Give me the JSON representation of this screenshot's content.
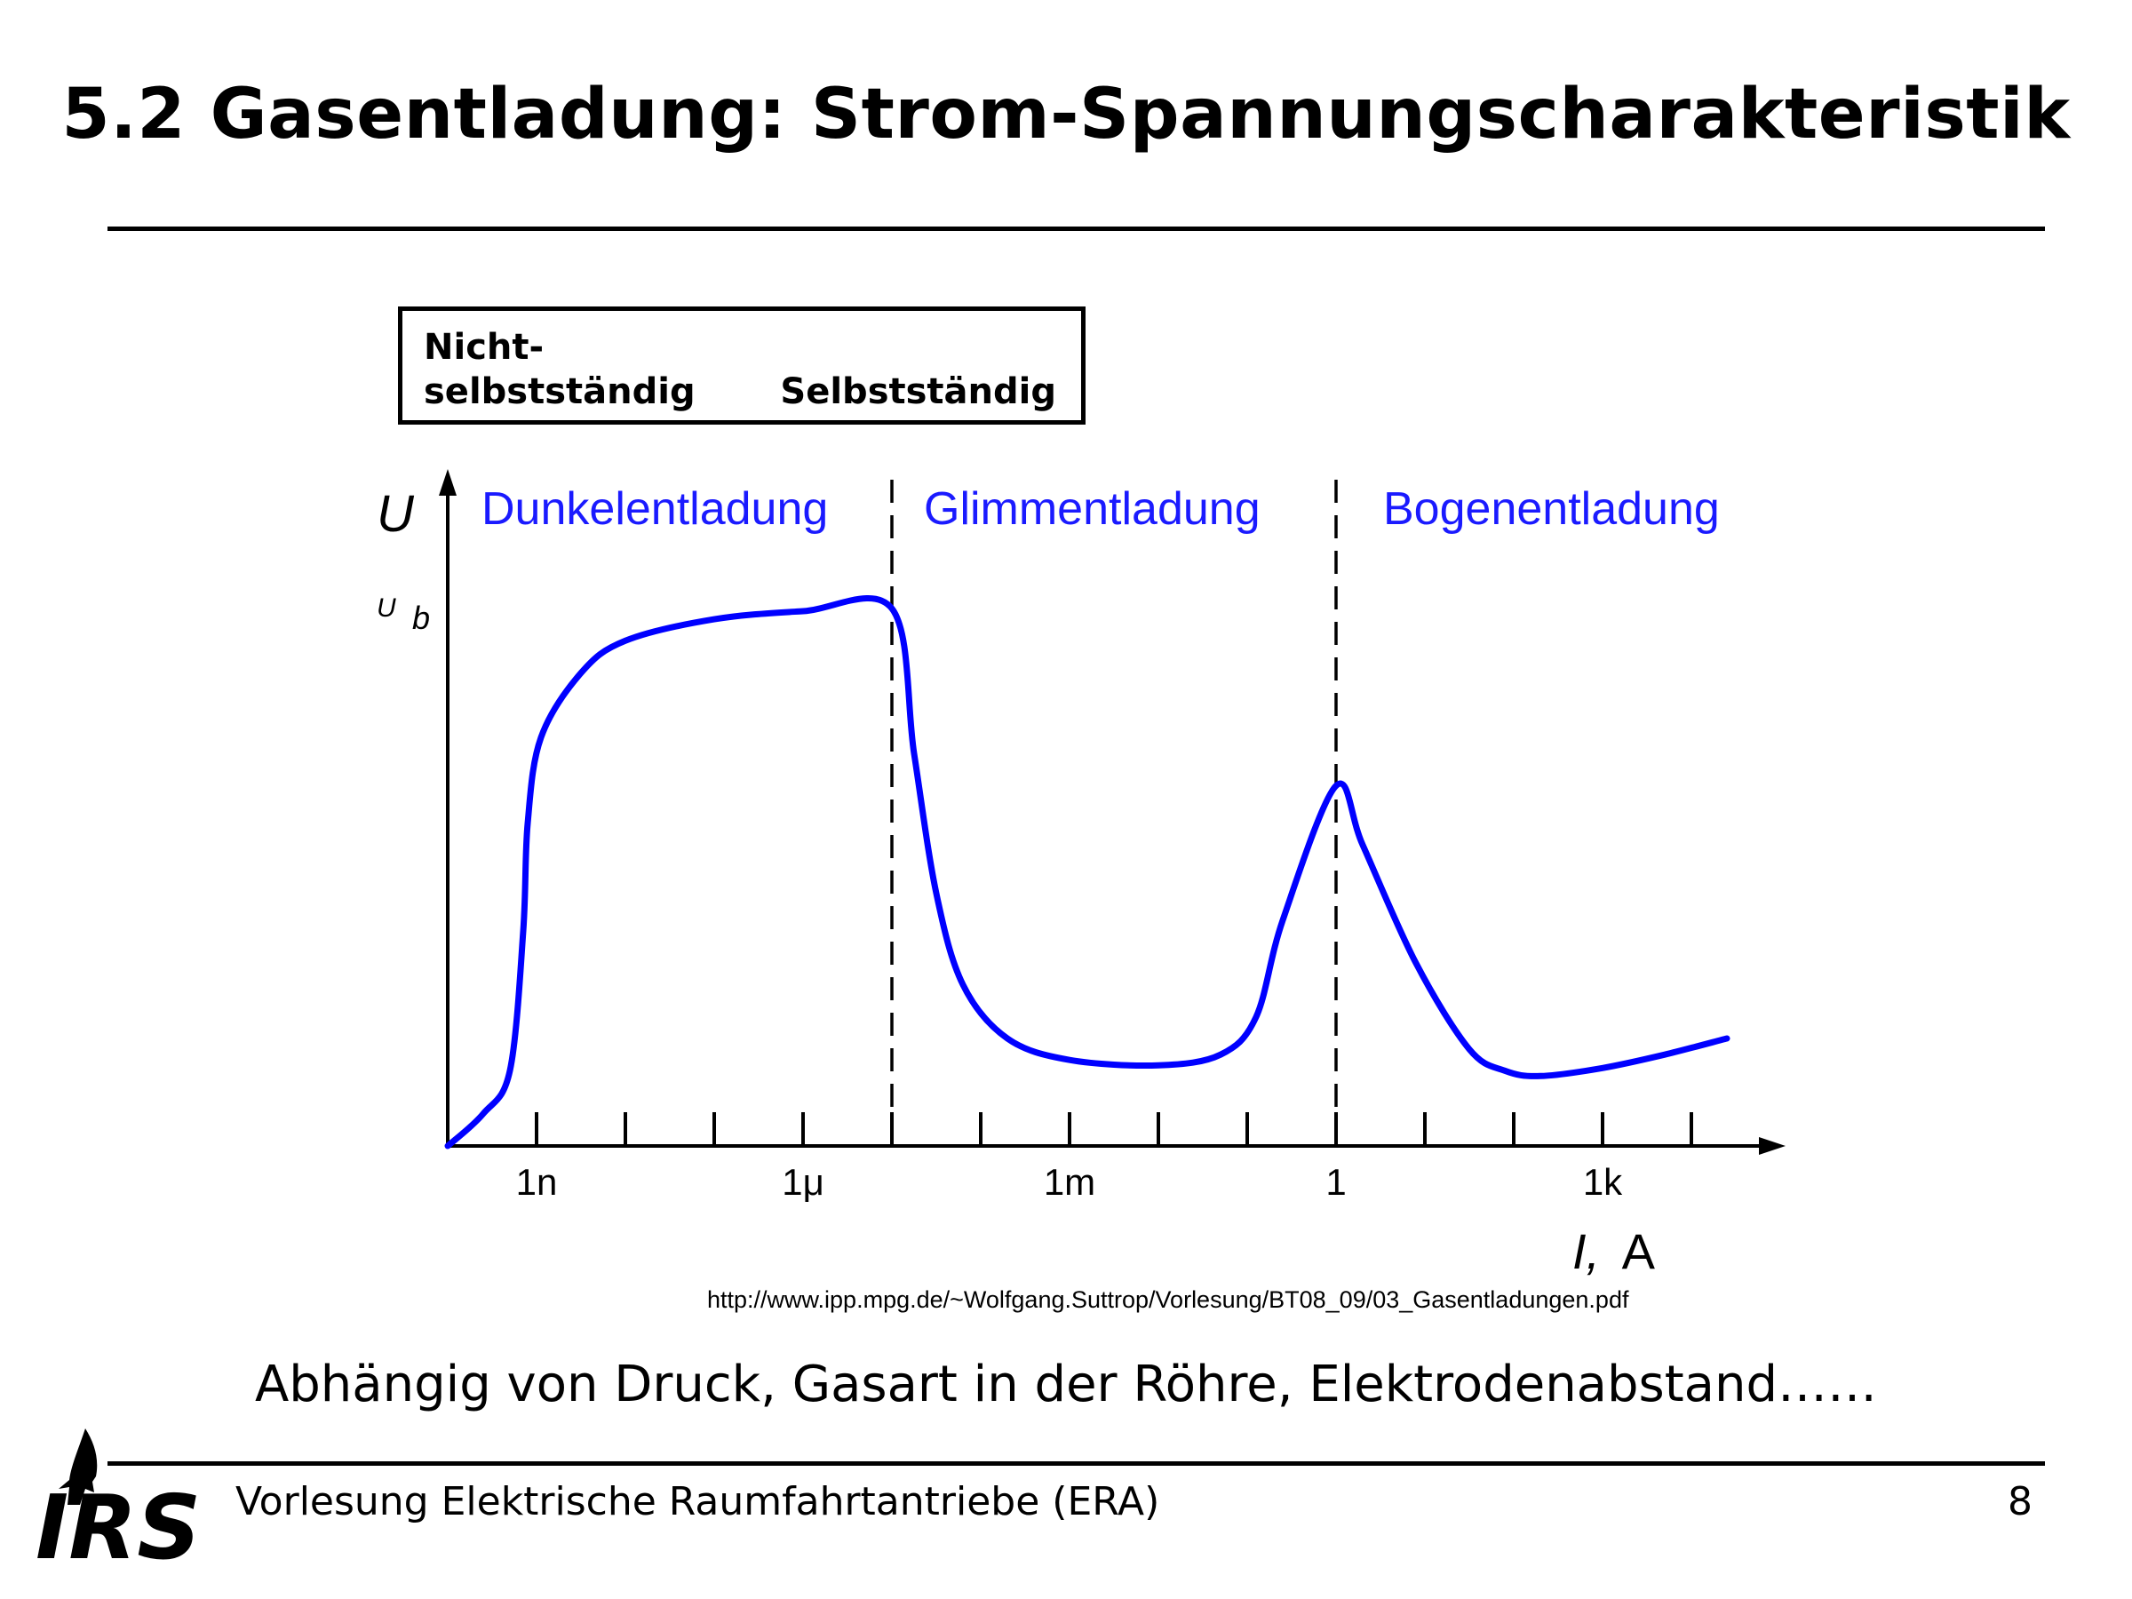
{
  "slide": {
    "title": "5.2 Gasentladung: Strom-Spannungscharakteristik",
    "regime_box": {
      "left_label_line1": "Nicht-",
      "left_label_line2": "selbstständig",
      "right_label": "Selbstständig"
    },
    "source_url": "http://www.ipp.mpg.de/~Wolfgang.Suttrop/Vorlesung/BT08_09/03_Gasentladungen.pdf",
    "note": "Abhängig von Druck, Gasart in der Röhre, Elektrodenabstand……",
    "footer": {
      "lecture": "Vorlesung Elektrische Raumfahrtantriebe (ERA)",
      "page_number": "8",
      "logo_text": "IRS"
    }
  },
  "chart_data": {
    "type": "line",
    "title": "",
    "xlabel_italic": "I,",
    "xlabel_unit": "A",
    "ylabel": "U",
    "y_marker_label": "U",
    "y_marker_subscript": "b",
    "x_scale": "log",
    "x_unit": "A",
    "xlim_log10": [
      -10,
      4.5
    ],
    "ylim_relative": [
      0,
      1.14
    ],
    "tick_labels": [
      {
        "label": "1n",
        "log10": -9
      },
      {
        "label": "1μ",
        "log10": -6
      },
      {
        "label": "1m",
        "log10": -3
      },
      {
        "label": "1",
        "log10": 0
      },
      {
        "label": "1k",
        "log10": 3
      }
    ],
    "minor_ticks_log10": [
      -9,
      -8,
      -7,
      -6,
      -5,
      -4,
      -3,
      -2,
      -1,
      0,
      1,
      2,
      3,
      4
    ],
    "regions": [
      {
        "name": "Dunkelentladung",
        "from_log10": -10,
        "to_log10": -5
      },
      {
        "name": "Glimmentladung",
        "from_log10": -5,
        "to_log10": 0
      },
      {
        "name": "Bogenentladung",
        "from_log10": 0,
        "to_log10": 4.5
      }
    ],
    "boundaries_log10": [
      -5,
      0
    ],
    "series": [
      {
        "color": "#0000ff",
        "points_log10x_relU": [
          [
            -10.0,
            0.0
          ],
          [
            -9.6,
            0.06
          ],
          [
            -9.3,
            0.14
          ],
          [
            -9.15,
            0.4
          ],
          [
            -9.1,
            0.6
          ],
          [
            -8.95,
            0.76
          ],
          [
            -8.5,
            0.88
          ],
          [
            -8.0,
            0.94
          ],
          [
            -7.0,
            0.98
          ],
          [
            -6.0,
            0.995
          ],
          [
            -5.0,
            1.0
          ],
          [
            -4.75,
            0.73
          ],
          [
            -4.5,
            0.47
          ],
          [
            -4.2,
            0.3
          ],
          [
            -3.7,
            0.2
          ],
          [
            -3.0,
            0.16
          ],
          [
            -2.0,
            0.15
          ],
          [
            -1.3,
            0.17
          ],
          [
            -0.9,
            0.24
          ],
          [
            -0.6,
            0.42
          ],
          [
            0.0,
            0.67
          ],
          [
            0.3,
            0.56
          ],
          [
            0.9,
            0.34
          ],
          [
            1.5,
            0.18
          ],
          [
            1.9,
            0.14
          ],
          [
            2.3,
            0.13
          ],
          [
            3.0,
            0.145
          ],
          [
            3.7,
            0.17
          ],
          [
            4.4,
            0.2
          ]
        ]
      }
    ],
    "grid": false,
    "legend": "none"
  }
}
